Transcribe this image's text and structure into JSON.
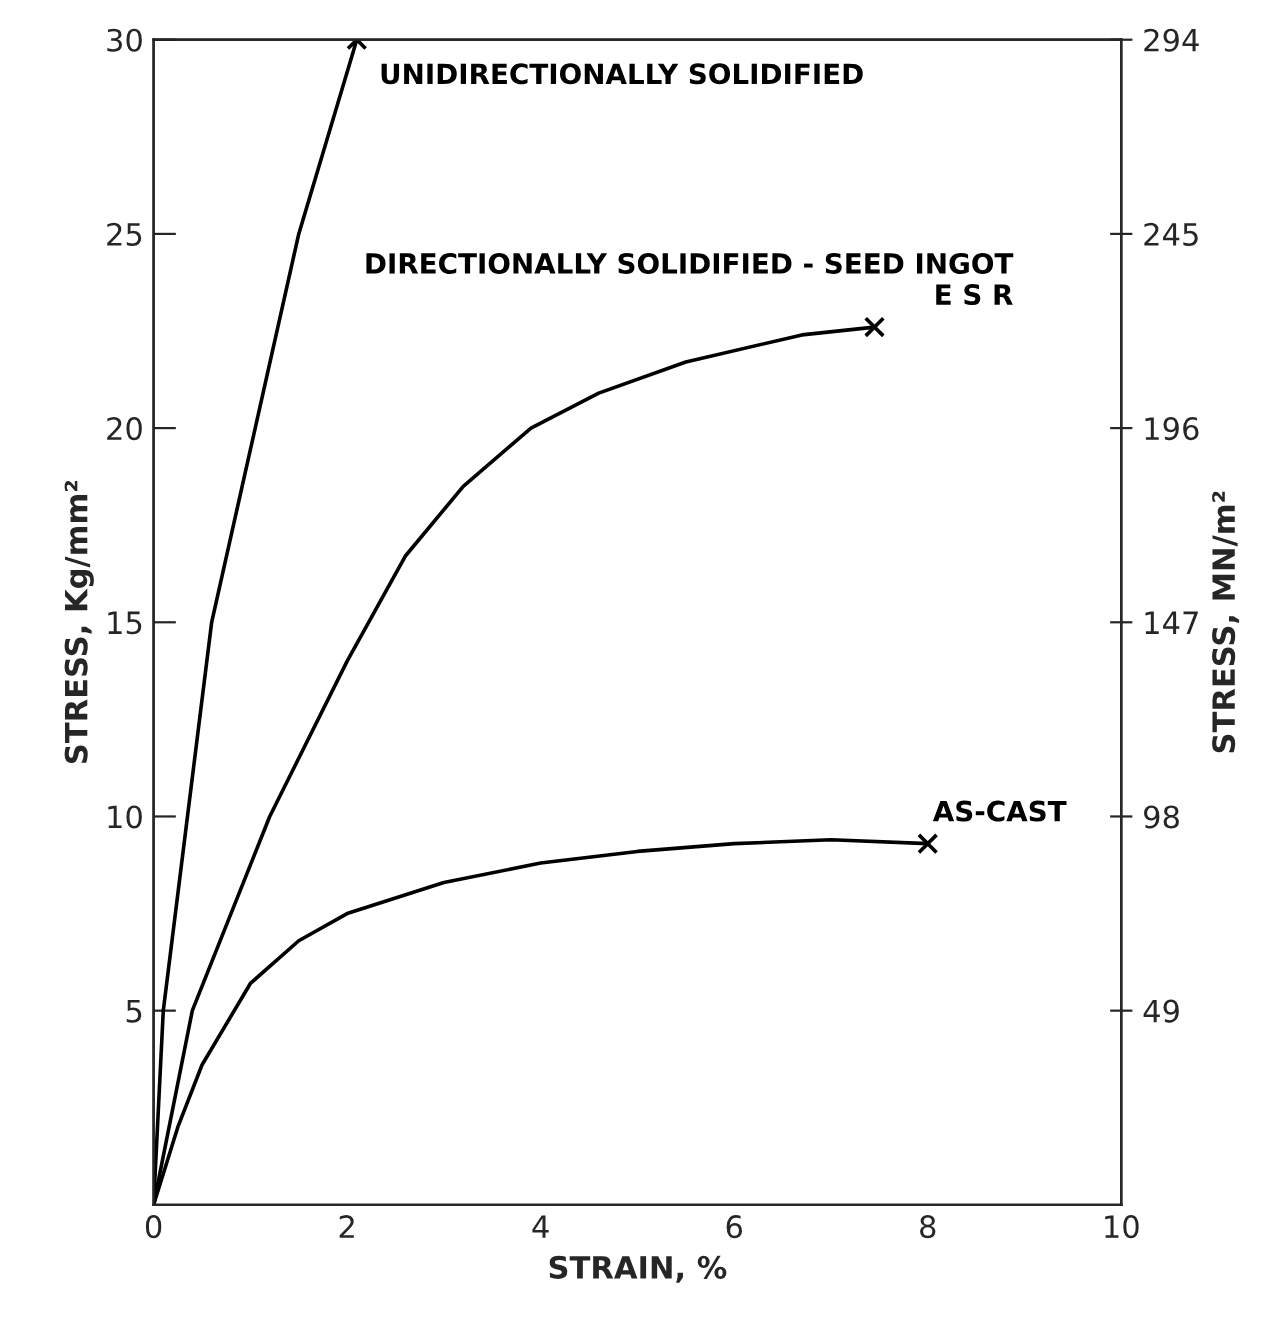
{
  "chart_data": {
    "type": "line",
    "xlabel": "STRAIN, %",
    "ylabel": "STRESS, Kg/mm²",
    "y2label": "STRESS, MN/m²",
    "xlim": [
      0,
      10
    ],
    "xticks": [
      0,
      2,
      4,
      6,
      8,
      10
    ],
    "ylim": [
      0,
      30
    ],
    "yticks": [
      5,
      10,
      15,
      20,
      25,
      30
    ],
    "y2lim": [
      0,
      294
    ],
    "y2ticks": [
      49,
      98,
      147,
      196,
      245,
      294
    ],
    "grid": false,
    "legend": false,
    "marker": "none",
    "line_style": "solid",
    "series": [
      {
        "name": "UNIDIRECTIONALLY SOLIDIFIED",
        "color": "#000000",
        "x": [
          0,
          0.1,
          0.35,
          0.6,
          1.05,
          1.5,
          2.1
        ],
        "values": [
          0,
          5,
          10,
          15,
          20,
          25,
          30
        ]
      },
      {
        "name": "DIRECTIONALLY SOLIDIFIED - SEED INGOT\nE S R",
        "color": "#000000",
        "x": [
          0,
          0.4,
          1.2,
          2,
          2.6,
          3.2,
          3.9,
          4.6,
          5.5,
          6.7,
          7.45
        ],
        "values": [
          0,
          5,
          10,
          14,
          16.7,
          18.5,
          20,
          20.9,
          21.7,
          22.4,
          22.6
        ]
      },
      {
        "name": "AS-CAST",
        "color": "#000000",
        "x": [
          0,
          0.25,
          0.5,
          1,
          1.5,
          2,
          3,
          4,
          5,
          6,
          7,
          8
        ],
        "values": [
          0,
          2,
          3.6,
          5.7,
          6.8,
          7.5,
          8.3,
          8.8,
          9.1,
          9.3,
          9.4,
          9.3
        ]
      },
      {
        "type": "scatter",
        "marker": "cross",
        "color": "#000000",
        "x": [
          2.1,
          7.45,
          8
        ],
        "values": [
          30,
          22.6,
          9.3
        ]
      }
    ]
  }
}
